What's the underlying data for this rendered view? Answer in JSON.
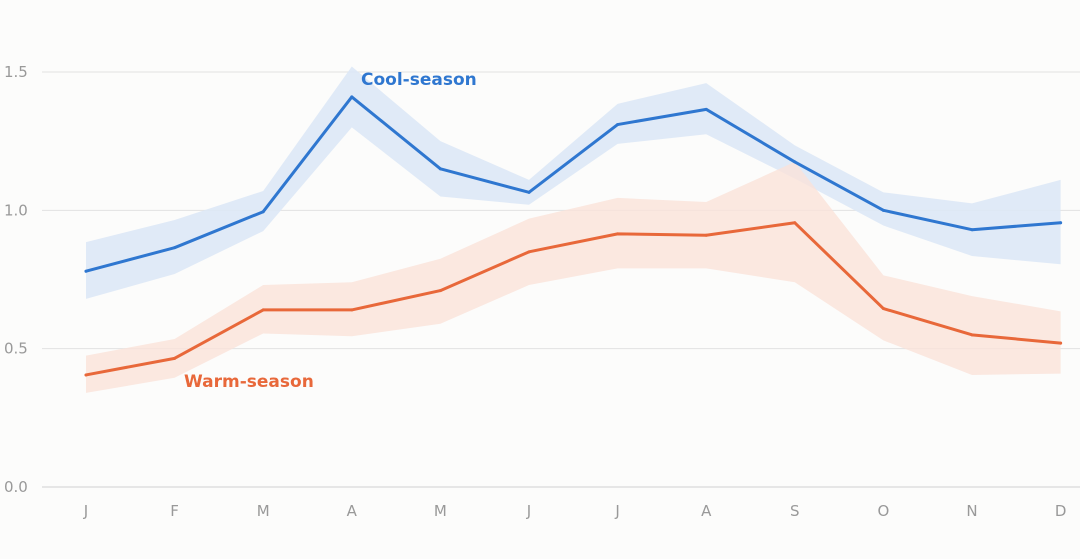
{
  "chart_data": {
    "type": "line",
    "categories": [
      "J",
      "F",
      "M",
      "A",
      "M",
      "J",
      "J",
      "A",
      "S",
      "O",
      "N",
      "D"
    ],
    "y_ticks": [
      "0.0",
      "0.5",
      "1.0",
      "1.5"
    ],
    "ylim": [
      0,
      1.5
    ],
    "grid": true,
    "series": [
      {
        "name": "Cool-season",
        "color": "#2f77d0",
        "band_color": "#dde8f6",
        "values": [
          0.78,
          0.865,
          0.995,
          1.41,
          1.15,
          1.065,
          1.31,
          1.365,
          1.175,
          1.0,
          0.93,
          0.955
        ],
        "upper": [
          0.885,
          0.965,
          1.07,
          1.52,
          1.25,
          1.11,
          1.385,
          1.46,
          1.235,
          1.065,
          1.025,
          1.11
        ],
        "lower": [
          0.68,
          0.77,
          0.925,
          1.3,
          1.05,
          1.02,
          1.24,
          1.275,
          1.115,
          0.945,
          0.835,
          0.805
        ]
      },
      {
        "name": "Warm-season",
        "color": "#e8683a",
        "band_color": "#fae2da",
        "values": [
          0.405,
          0.465,
          0.64,
          0.64,
          0.71,
          0.85,
          0.915,
          0.91,
          0.955,
          0.645,
          0.55,
          0.52
        ],
        "upper": [
          0.475,
          0.535,
          0.73,
          0.74,
          0.825,
          0.97,
          1.045,
          1.03,
          1.175,
          0.765,
          0.69,
          0.635
        ],
        "lower": [
          0.34,
          0.395,
          0.555,
          0.545,
          0.59,
          0.73,
          0.79,
          0.79,
          0.74,
          0.53,
          0.405,
          0.41
        ]
      }
    ]
  }
}
